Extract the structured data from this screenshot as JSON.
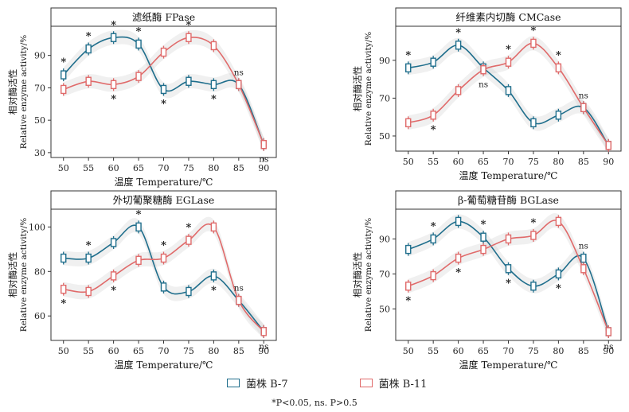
{
  "legend": {
    "series_b7": "菌株 B-7",
    "series_b11": "菌株 B-11",
    "color_b7": "#1f6e8c",
    "color_b11": "#e06a6a",
    "footnote": "*P<0.05, ns. P>0.5"
  },
  "chart_data": [
    {
      "type": "line",
      "title": "滤纸酶 FPase",
      "xlabel": "温度 Temperature/℃",
      "ylabel_cn": "相对酶活性",
      "ylabel_en": "Relative enzyme activity/%",
      "x": [
        50,
        55,
        60,
        65,
        70,
        75,
        80,
        85,
        90
      ],
      "xlim": [
        47.5,
        92.5
      ],
      "ylim": [
        27,
        108
      ],
      "yticks": [
        30,
        50,
        70,
        90
      ],
      "series": [
        {
          "name": "菌株 B-7",
          "values": [
            78,
            94,
            101,
            97,
            69,
            74,
            72,
            72,
            35
          ]
        },
        {
          "name": "菌株 B-11",
          "values": [
            69,
            74,
            72,
            77,
            92,
            101,
            96,
            72,
            35
          ]
        }
      ],
      "annotations": [
        {
          "x": 50,
          "text": "*",
          "pos": "above"
        },
        {
          "x": 55,
          "text": "*",
          "pos": "above"
        },
        {
          "x": 60,
          "text": "*",
          "pos": "above"
        },
        {
          "x": 60,
          "text": "*",
          "pos": "below"
        },
        {
          "x": 65,
          "text": "*",
          "pos": "above"
        },
        {
          "x": 70,
          "text": "*",
          "pos": "below"
        },
        {
          "x": 75,
          "text": "*",
          "pos": "above"
        },
        {
          "x": 80,
          "text": "*",
          "pos": "below"
        },
        {
          "x": 85,
          "text": "ns",
          "pos": "above"
        },
        {
          "x": 90,
          "text": "ns",
          "pos": "below"
        }
      ]
    },
    {
      "type": "line",
      "title": "纤维素内切酶 CMCase",
      "xlabel": "温度 Temperature/℃",
      "ylabel_cn": "相对酶活性",
      "ylabel_en": "Relative enzyme activity/%",
      "x": [
        50,
        55,
        60,
        65,
        70,
        75,
        80,
        85,
        90
      ],
      "xlim": [
        47.5,
        92.5
      ],
      "ylim": [
        42,
        108
      ],
      "yticks": [
        50,
        70,
        90
      ],
      "series": [
        {
          "name": "菌株 B-7",
          "values": [
            86,
            89,
            98,
            86,
            74,
            57,
            61,
            65,
            45
          ]
        },
        {
          "name": "菌株 B-11",
          "values": [
            57,
            61,
            74,
            85,
            89,
            99,
            86,
            65,
            45
          ]
        }
      ],
      "annotations": [
        {
          "x": 50,
          "text": "*",
          "pos": "above"
        },
        {
          "x": 55,
          "text": "*",
          "pos": "below"
        },
        {
          "x": 60,
          "text": "*",
          "pos": "above"
        },
        {
          "x": 65,
          "text": "ns",
          "pos": "below"
        },
        {
          "x": 70,
          "text": "*",
          "pos": "above"
        },
        {
          "x": 75,
          "text": "*",
          "pos": "above"
        },
        {
          "x": 80,
          "text": "*",
          "pos": "above"
        },
        {
          "x": 85,
          "text": "ns",
          "pos": "above"
        }
      ]
    },
    {
      "type": "line",
      "title": "外切葡聚糖酶 EGLase",
      "xlabel": "温度 Temperature/℃",
      "ylabel_cn": "相对酶活性",
      "ylabel_en": "Relative enzyme activity/%",
      "x": [
        50,
        55,
        60,
        65,
        70,
        75,
        80,
        85,
        90
      ],
      "xlim": [
        47.5,
        92.5
      ],
      "ylim": [
        49,
        108
      ],
      "yticks": [
        60,
        80,
        100
      ],
      "series": [
        {
          "name": "菌株 B-7",
          "values": [
            86,
            86,
            93,
            100,
            73,
            71,
            78,
            67,
            53
          ]
        },
        {
          "name": "菌株 B-11",
          "values": [
            72,
            71,
            78,
            85,
            86,
            94,
            100,
            67,
            53
          ]
        }
      ],
      "annotations": [
        {
          "x": 50,
          "text": "*",
          "pos": "below"
        },
        {
          "x": 55,
          "text": "*",
          "pos": "above"
        },
        {
          "x": 60,
          "text": "*",
          "pos": "below"
        },
        {
          "x": 65,
          "text": "*",
          "pos": "above"
        },
        {
          "x": 70,
          "text": "*",
          "pos": "above"
        },
        {
          "x": 75,
          "text": "*",
          "pos": "above"
        },
        {
          "x": 80,
          "text": "*",
          "pos": "below"
        },
        {
          "x": 85,
          "text": "ns",
          "pos": "above"
        },
        {
          "x": 90,
          "text": "ns",
          "pos": "below"
        }
      ]
    },
    {
      "type": "line",
      "title": "β-葡萄糖苷酶 BGLase",
      "xlabel": "温度 Temperature/℃",
      "ylabel_cn": "相对酶活性",
      "ylabel_en": "Relative enzyme activity/%",
      "x": [
        50,
        55,
        60,
        65,
        70,
        75,
        80,
        85,
        90
      ],
      "xlim": [
        47.5,
        92.5
      ],
      "ylim": [
        32,
        107
      ],
      "yticks": [
        50,
        70,
        90
      ],
      "series": [
        {
          "name": "菌株 B-7",
          "values": [
            84,
            90,
            100,
            91,
            73,
            63,
            70,
            79,
            37
          ]
        },
        {
          "name": "菌株 B-11",
          "values": [
            63,
            69,
            79,
            84,
            90,
            92,
            100,
            73,
            37
          ]
        }
      ],
      "annotations": [
        {
          "x": 50,
          "text": "*",
          "pos": "below"
        },
        {
          "x": 55,
          "text": "*",
          "pos": "above"
        },
        {
          "x": 60,
          "text": "*",
          "pos": "below"
        },
        {
          "x": 65,
          "text": "*",
          "pos": "above"
        },
        {
          "x": 70,
          "text": "*",
          "pos": "below"
        },
        {
          "x": 75,
          "text": "*",
          "pos": "above"
        },
        {
          "x": 80,
          "text": "*",
          "pos": "below"
        },
        {
          "x": 85,
          "text": "ns",
          "pos": "above"
        },
        {
          "x": 90,
          "text": "ns",
          "pos": "below"
        }
      ]
    }
  ]
}
